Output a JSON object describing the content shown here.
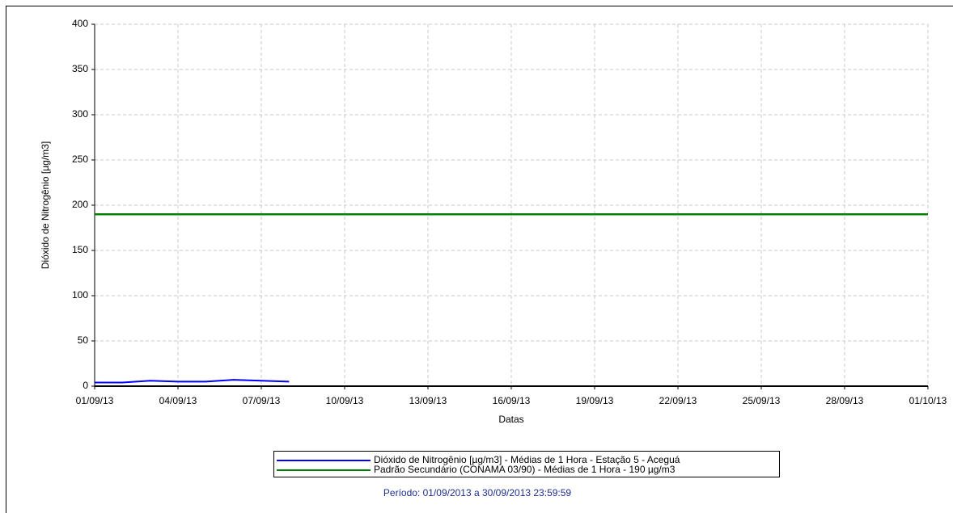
{
  "chart_data": {
    "type": "line",
    "xlabel": "Datas",
    "ylabel": "Dióxido de Nitrogênio [µg/m3]",
    "footer": "Período: 01/09/2013 a 30/09/2013 23:59:59",
    "xlim": [
      "01/09/13",
      "01/10/13"
    ],
    "xticks": [
      "01/09/13",
      "04/09/13",
      "07/09/13",
      "10/09/13",
      "13/09/13",
      "16/09/13",
      "19/09/13",
      "22/09/13",
      "25/09/13",
      "28/09/13",
      "01/10/13"
    ],
    "ylim": [
      0,
      400
    ],
    "yticks": [
      0,
      50,
      100,
      150,
      200,
      250,
      300,
      350,
      400
    ],
    "grid": true,
    "series": [
      {
        "name": "Dióxido de Nitrogênio [µg/m3] - Médias de 1 Hora - Estação 5 - Aceguá",
        "color": "#0000ff",
        "x": [
          "01/09/13",
          "02/09/13",
          "03/09/13",
          "04/09/13",
          "05/09/13",
          "06/09/13",
          "07/09/13",
          "08/09/13"
        ],
        "values": [
          4,
          4,
          6,
          5,
          5,
          7,
          6,
          5
        ]
      },
      {
        "name": "Padrão Secundário (CONAMA 03/90) - Médias de 1 Hora - 190 µg/m3",
        "color": "#008000",
        "x": [
          "01/09/13",
          "01/10/13"
        ],
        "values": [
          190,
          190
        ]
      }
    ]
  }
}
